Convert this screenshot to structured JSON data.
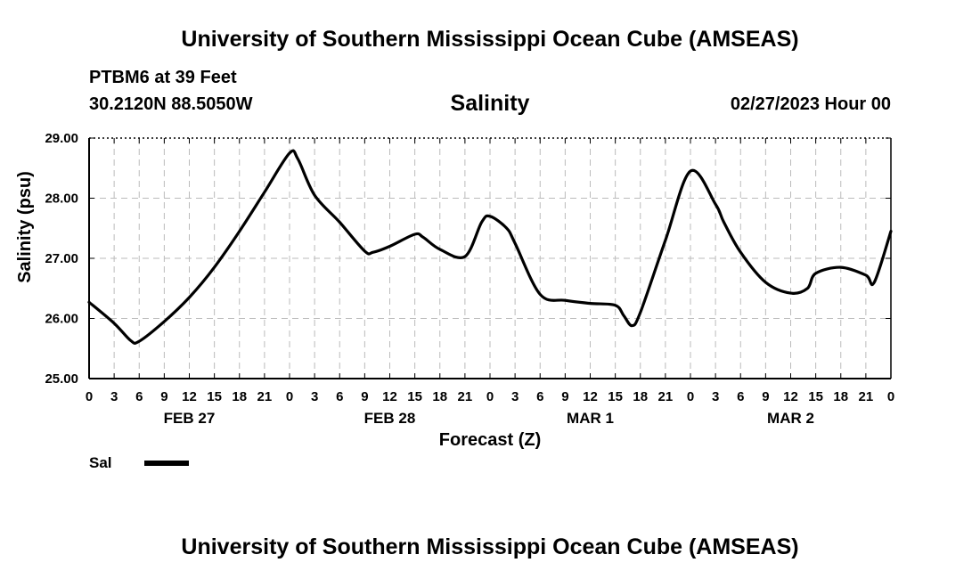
{
  "header": {
    "title_top": "University of Southern Mississippi Ocean Cube (AMSEAS)",
    "station": "PTBM6 at 39 Feet",
    "coords": "30.2120N  88.5050W",
    "datetime": "02/27/2023 Hour 00",
    "title_bottom": "University of Southern Mississippi Ocean Cube (AMSEAS)"
  },
  "legend": {
    "label": "Sal"
  },
  "colors": {
    "line": "#000000",
    "grid": "#bbbbbb"
  },
  "chart_data": {
    "type": "line",
    "title": "Salinity",
    "xlabel": "Forecast (Z)",
    "ylabel": "Salinity (psu)",
    "ylim": [
      25.0,
      29.0
    ],
    "xlim": [
      0,
      96
    ],
    "grid": true,
    "y_ticks": [
      "25.00",
      "26.00",
      "27.00",
      "28.00",
      "29.00"
    ],
    "x_tick_labels": [
      "0",
      "3",
      "6",
      "9",
      "12",
      "15",
      "18",
      "21",
      "0",
      "3",
      "6",
      "9",
      "12",
      "15",
      "18",
      "21",
      "0",
      "3",
      "6",
      "9",
      "12",
      "15",
      "18",
      "21",
      "0",
      "3",
      "6",
      "9",
      "12",
      "15",
      "18",
      "21",
      "0"
    ],
    "day_labels": [
      {
        "label": "FEB 27",
        "hour": 12
      },
      {
        "label": "FEB 28",
        "hour": 36
      },
      {
        "label": "MAR 1",
        "hour": 60
      },
      {
        "label": "MAR 2",
        "hour": 84
      }
    ],
    "series": [
      {
        "name": "Sal",
        "x": [
          0,
          3,
          5,
          6,
          9,
          12,
          15,
          18,
          21,
          24,
          25,
          27,
          30,
          33,
          34,
          36,
          39,
          40,
          42,
          45,
          47,
          48,
          50,
          51,
          54,
          57,
          60,
          63,
          64,
          65,
          66,
          69,
          72,
          75,
          76,
          78,
          81,
          84,
          86,
          87,
          90,
          93,
          94,
          96
        ],
        "y": [
          26.27,
          25.92,
          25.63,
          25.62,
          25.95,
          26.35,
          26.85,
          27.45,
          28.1,
          28.75,
          28.65,
          28.05,
          27.6,
          27.12,
          27.1,
          27.2,
          27.4,
          27.35,
          27.15,
          27.03,
          27.6,
          27.7,
          27.5,
          27.25,
          26.4,
          26.3,
          26.25,
          26.22,
          26.05,
          25.88,
          26.1,
          27.3,
          28.45,
          27.9,
          27.6,
          27.1,
          26.6,
          26.42,
          26.5,
          26.75,
          26.85,
          26.72,
          26.6,
          27.45
        ]
      }
    ]
  }
}
